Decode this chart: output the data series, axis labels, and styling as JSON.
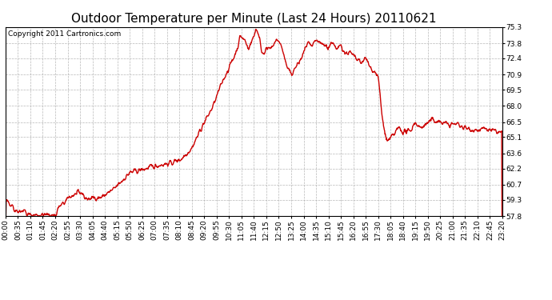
{
  "title": "Outdoor Temperature per Minute (Last 24 Hours) 20110621",
  "copyright": "Copyright 2011 Cartronics.com",
  "line_color": "#cc0000",
  "bg_color": "#ffffff",
  "plot_bg_color": "#ffffff",
  "grid_color": "#b0b0b0",
  "yticks": [
    57.8,
    59.3,
    60.7,
    62.2,
    63.6,
    65.1,
    66.5,
    68.0,
    69.5,
    70.9,
    72.4,
    73.8,
    75.3
  ],
  "ymin": 57.8,
  "ymax": 75.3,
  "xtick_labels": [
    "00:00",
    "00:35",
    "01:10",
    "01:45",
    "02:20",
    "02:55",
    "03:30",
    "04:05",
    "04:40",
    "05:15",
    "05:50",
    "06:25",
    "07:00",
    "07:35",
    "08:10",
    "08:45",
    "09:20",
    "09:55",
    "10:30",
    "11:05",
    "11:40",
    "12:15",
    "12:50",
    "13:25",
    "14:00",
    "14:35",
    "15:10",
    "15:45",
    "16:20",
    "16:55",
    "17:30",
    "18:05",
    "18:40",
    "19:15",
    "19:50",
    "20:25",
    "21:00",
    "21:35",
    "22:10",
    "22:45",
    "23:20"
  ],
  "title_fontsize": 11,
  "copyright_fontsize": 6.5,
  "tick_fontsize": 6.5,
  "line_width": 1.0
}
